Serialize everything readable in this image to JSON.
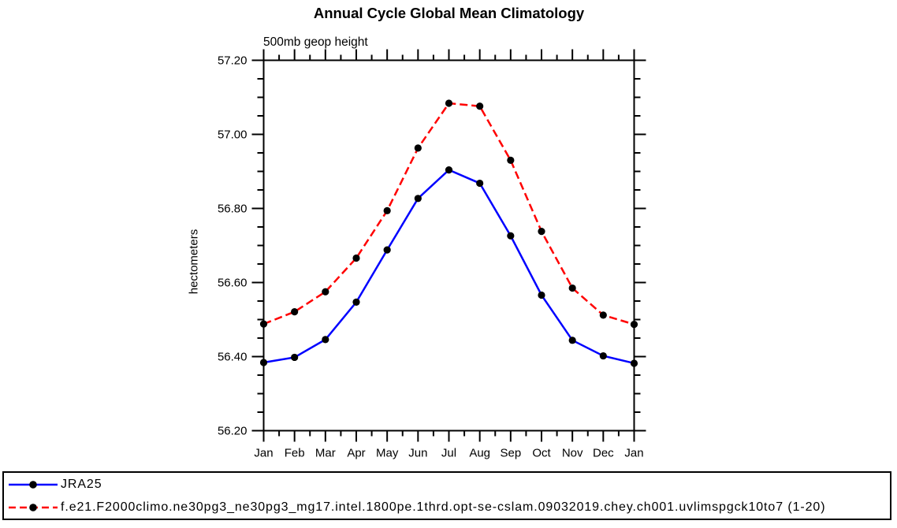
{
  "chart_data": {
    "type": "line",
    "title": "Annual Cycle Global Mean Climatology",
    "subtitle": "500mb geop height",
    "ylabel": "hectometers",
    "categories": [
      "Jan",
      "Feb",
      "Mar",
      "Apr",
      "May",
      "Jun",
      "Jul",
      "Aug",
      "Sep",
      "Oct",
      "Nov",
      "Dec",
      "Jan"
    ],
    "ylim": [
      56.2,
      57.2
    ],
    "ytick_step": 0.2,
    "ytick_labels": [
      "56.20",
      "56.40",
      "56.60",
      "56.80",
      "57.00",
      "57.20"
    ],
    "y_minor_step": 0.05,
    "x_minor_ticks": "halfway-between-months",
    "grid": false,
    "axis_color": "#000000",
    "marker": {
      "shape": "filled-circle",
      "color": "#000000"
    },
    "legend_position": "bottom-outside-box",
    "series": [
      {
        "name": "JRA25",
        "color": "#0000ff",
        "line_style": "solid",
        "values": [
          56.384,
          56.398,
          56.446,
          56.547,
          56.688,
          56.827,
          56.904,
          56.868,
          56.726,
          56.566,
          56.444,
          56.402,
          56.382
        ]
      },
      {
        "name": "f.e21.F2000climo.ne30pg3_ne30pg3_mg17.intel.1800pe.1thrd.opt-se-cslam.09032019.chey.ch001.uvlimspgck10to7 (1-20)",
        "color": "#ff0000",
        "line_style": "dashed",
        "values": [
          56.488,
          56.521,
          56.575,
          56.666,
          56.794,
          56.963,
          57.084,
          57.076,
          56.93,
          56.738,
          56.585,
          56.512,
          56.487
        ]
      }
    ]
  }
}
